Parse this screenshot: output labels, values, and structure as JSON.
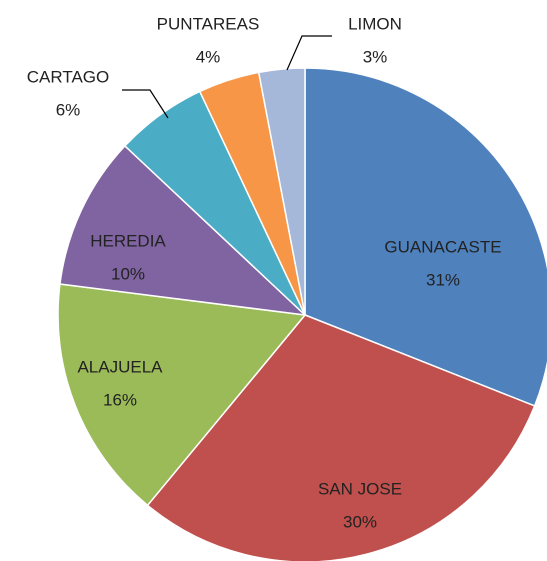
{
  "chart_data": {
    "type": "pie",
    "categories": [
      "GUANACASTE",
      "SAN JOSE",
      "ALAJUELA",
      "HEREDIA",
      "CARTAGO",
      "PUNTAREAS",
      "LIMON"
    ],
    "values": [
      31,
      30,
      16,
      10,
      6,
      4,
      3
    ],
    "value_labels": [
      "31%",
      "30%",
      "16%",
      "10%",
      "6%",
      "4%",
      "3%"
    ],
    "colors": [
      "#4f81bd",
      "#c0504d",
      "#9bbb59",
      "#8064a2",
      "#4bacc6",
      "#f79646",
      "#a5b8da"
    ]
  }
}
